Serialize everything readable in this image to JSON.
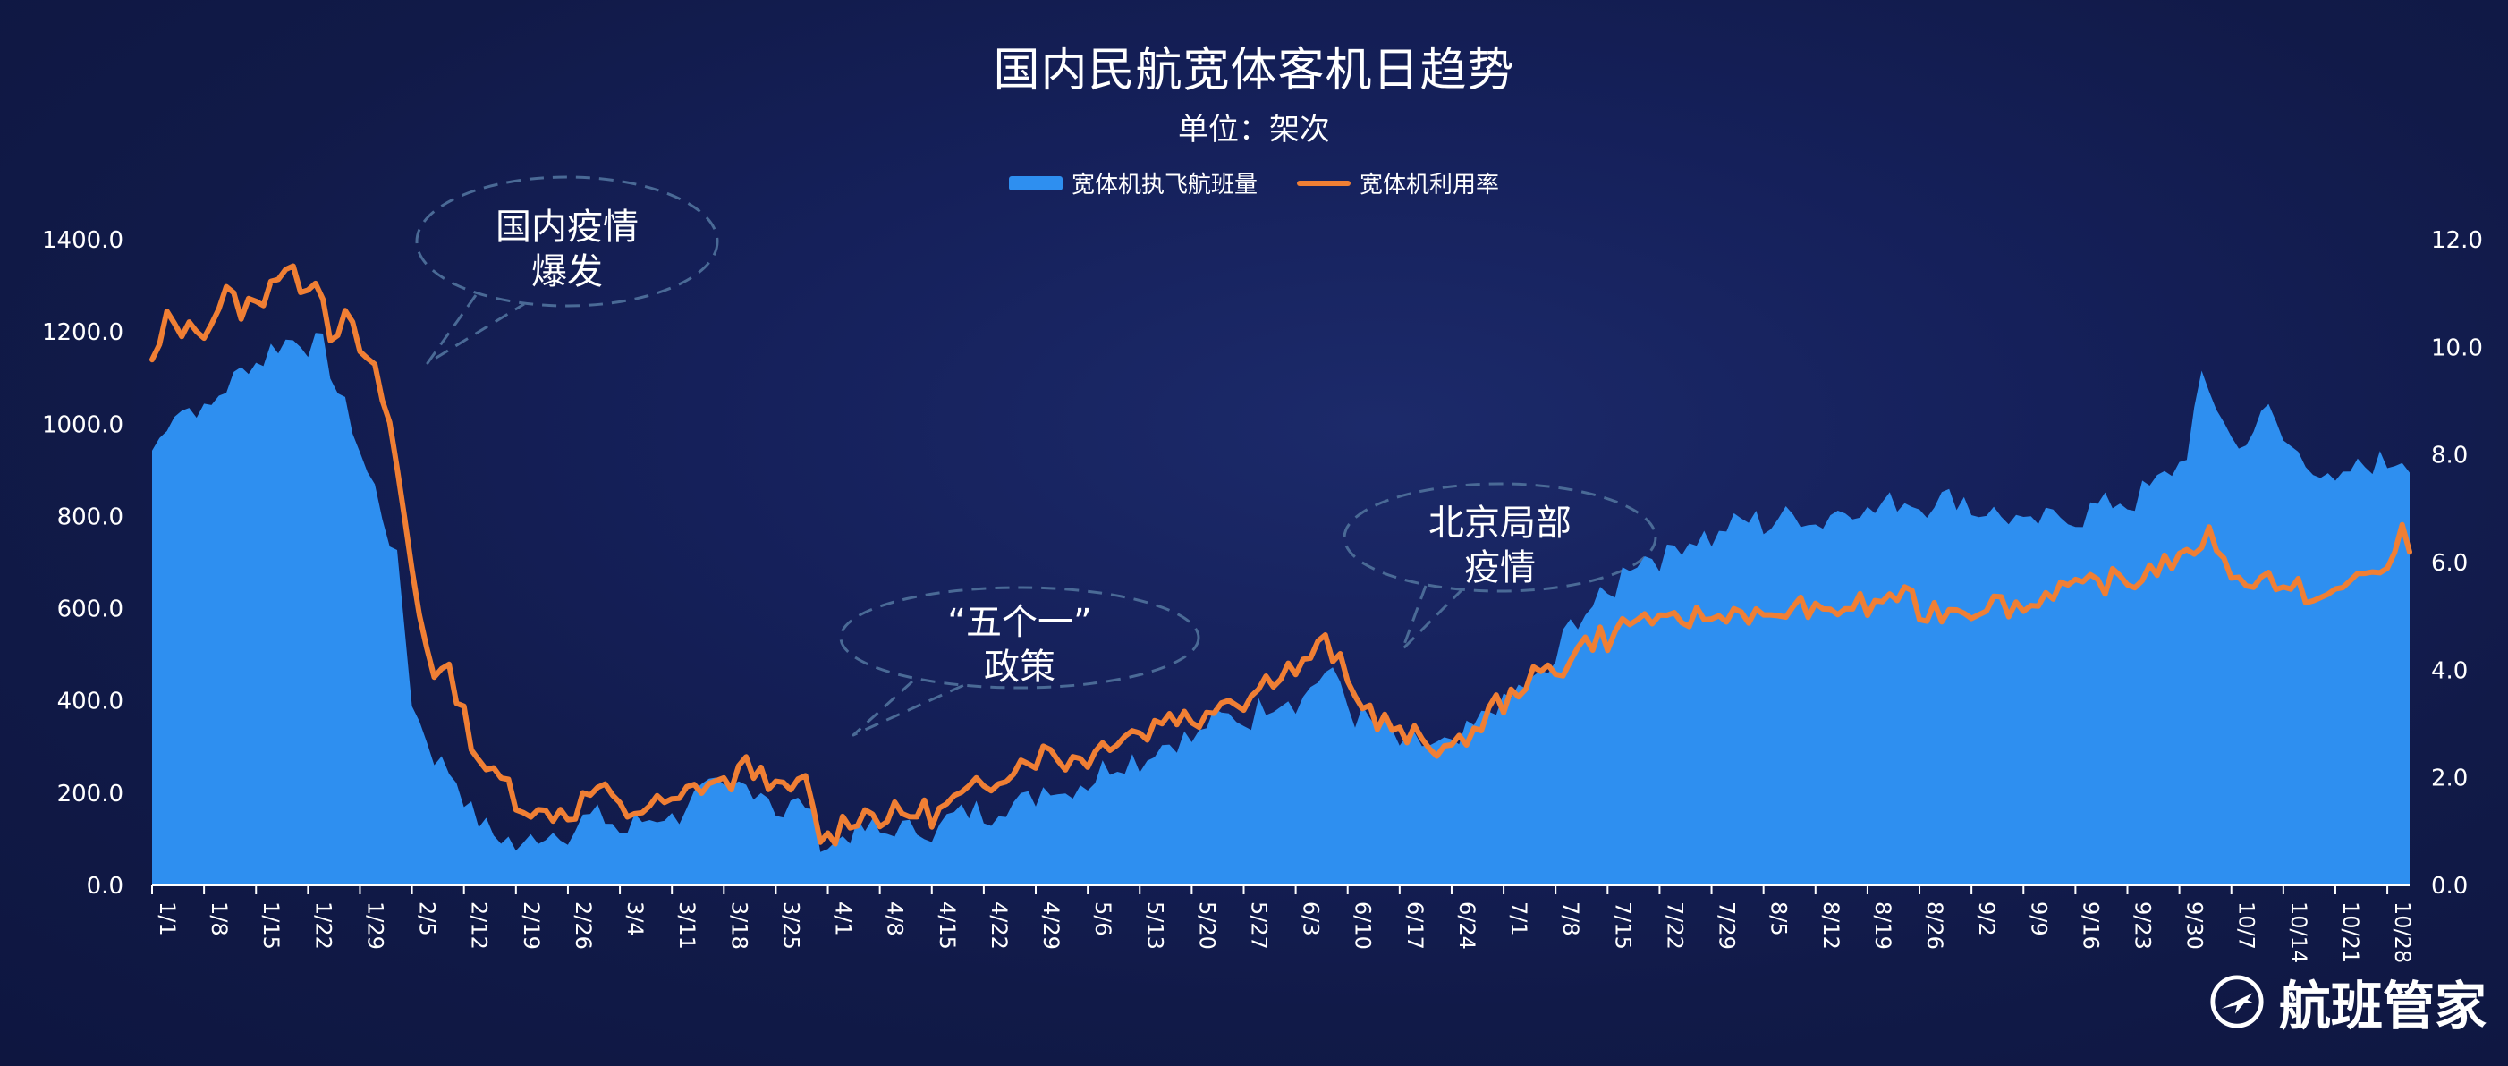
{
  "chart_title": "国内民航宽体客机日趋势",
  "chart_subtitle": "单位：架次",
  "colors": {
    "area": "#2E8FF0",
    "line": "#F07F34",
    "axis_text": "#FFFFFF",
    "bubble": "#4A6A96"
  },
  "legend": [
    {
      "label": "宽体机执飞航班量",
      "kind": "area",
      "color": "#2E8FF0"
    },
    {
      "label": "宽体机利用率",
      "kind": "line",
      "color": "#F07F34"
    }
  ],
  "annotations": [
    {
      "lines": [
        "国内疫情",
        "爆发"
      ]
    },
    {
      "lines": [
        "“五个一”",
        "政策"
      ]
    },
    {
      "lines": [
        "北京局部",
        "疫情"
      ]
    }
  ],
  "logo": {
    "text": "航班管家",
    "icon": "airplane-circle-icon"
  },
  "chart_data": {
    "type": "area",
    "start_date": "1/1",
    "days": 305,
    "x_tick_labels": [
      "1/1",
      "1/8",
      "1/15",
      "1/22",
      "1/29",
      "2/5",
      "2/12",
      "2/19",
      "2/26",
      "3/4",
      "3/11",
      "3/18",
      "3/25",
      "4/1",
      "4/8",
      "4/15",
      "4/22",
      "4/29",
      "5/6",
      "5/13",
      "5/20",
      "5/27",
      "6/3",
      "6/10",
      "6/17",
      "6/24",
      "7/1",
      "7/8",
      "7/15",
      "7/22",
      "7/29",
      "8/5",
      "8/12",
      "8/19",
      "8/26",
      "9/2",
      "9/9",
      "9/16",
      "9/23",
      "9/30",
      "10/7",
      "10/14",
      "10/21",
      "10/28"
    ],
    "y_left": {
      "min": 0,
      "max": 1400,
      "step": 200,
      "tick_labels": [
        "0.0",
        "200.0",
        "400.0",
        "600.0",
        "800.0",
        "1000.0",
        "1200.0",
        "1400.0"
      ]
    },
    "y_right": {
      "min": 0,
      "max": 12,
      "step": 2,
      "tick_labels": [
        "0.0",
        "2.0",
        "4.0",
        "6.0",
        "8.0",
        "10.0",
        "12.0"
      ]
    },
    "series": [
      {
        "name": "宽体机执飞航班量",
        "type": "area",
        "axis": "left",
        "keyframes": [
          [
            0,
            960
          ],
          [
            3,
            1030
          ],
          [
            7,
            1040
          ],
          [
            10,
            1080
          ],
          [
            14,
            1150
          ],
          [
            18,
            1180
          ],
          [
            22,
            1190
          ],
          [
            23,
            1170
          ],
          [
            25,
            1070
          ],
          [
            28,
            960
          ],
          [
            30,
            860
          ],
          [
            33,
            700
          ],
          [
            35,
            420
          ],
          [
            37,
            320
          ],
          [
            38,
            280
          ],
          [
            40,
            250
          ],
          [
            42,
            210
          ],
          [
            44,
            140
          ],
          [
            46,
            110
          ],
          [
            48,
            100
          ],
          [
            50,
            95
          ],
          [
            52,
            110
          ],
          [
            55,
            120
          ],
          [
            57,
            140
          ],
          [
            60,
            150
          ],
          [
            63,
            130
          ],
          [
            66,
            140
          ],
          [
            70,
            160
          ],
          [
            74,
            200
          ],
          [
            78,
            220
          ],
          [
            82,
            210
          ],
          [
            85,
            170
          ],
          [
            88,
            180
          ],
          [
            90,
            100
          ],
          [
            93,
            110
          ],
          [
            96,
            120
          ],
          [
            99,
            130
          ],
          [
            102,
            120
          ],
          [
            105,
            130
          ],
          [
            108,
            150
          ],
          [
            112,
            170
          ],
          [
            115,
            175
          ],
          [
            118,
            185
          ],
          [
            120,
            230
          ],
          [
            123,
            200
          ],
          [
            127,
            250
          ],
          [
            131,
            270
          ],
          [
            135,
            300
          ],
          [
            139,
            320
          ],
          [
            143,
            360
          ],
          [
            147,
            370
          ],
          [
            151,
            400
          ],
          [
            155,
            420
          ],
          [
            158,
            460
          ],
          [
            160,
            440
          ],
          [
            162,
            380
          ],
          [
            165,
            340
          ],
          [
            170,
            310
          ],
          [
            173,
            300
          ],
          [
            175,
            310
          ],
          [
            178,
            340
          ],
          [
            180,
            380
          ],
          [
            183,
            420
          ],
          [
            186,
            440
          ],
          [
            188,
            460
          ],
          [
            190,
            550
          ],
          [
            192,
            580
          ],
          [
            195,
            620
          ],
          [
            199,
            700
          ],
          [
            204,
            730
          ],
          [
            209,
            760
          ],
          [
            214,
            790
          ],
          [
            219,
            800
          ],
          [
            224,
            800
          ],
          [
            229,
            820
          ],
          [
            234,
            830
          ],
          [
            239,
            840
          ],
          [
            244,
            840
          ],
          [
            249,
            800
          ],
          [
            254,
            790
          ],
          [
            259,
            810
          ],
          [
            264,
            830
          ],
          [
            269,
            860
          ],
          [
            272,
            900
          ],
          [
            274,
            960
          ],
          [
            276,
            1090
          ],
          [
            278,
            1040
          ],
          [
            281,
            960
          ],
          [
            283,
            990
          ],
          [
            285,
            1030
          ],
          [
            287,
            980
          ],
          [
            290,
            930
          ],
          [
            293,
            870
          ],
          [
            296,
            900
          ],
          [
            300,
            920
          ],
          [
            302,
            940
          ],
          [
            304,
            920
          ]
        ],
        "note": "values read off left axis (架次), one point per day"
      },
      {
        "name": "宽体机利用率",
        "type": "line",
        "axis": "right",
        "keyframes": [
          [
            0,
            9.8
          ],
          [
            2,
            10.5
          ],
          [
            5,
            10.3
          ],
          [
            8,
            10.6
          ],
          [
            10,
            11.0
          ],
          [
            12,
            10.7
          ],
          [
            14,
            10.9
          ],
          [
            16,
            11.3
          ],
          [
            18,
            11.4
          ],
          [
            20,
            11.2
          ],
          [
            22,
            11.5
          ],
          [
            24,
            10.3
          ],
          [
            26,
            10.5
          ],
          [
            28,
            10.1
          ],
          [
            30,
            9.5
          ],
          [
            32,
            8.6
          ],
          [
            34,
            6.8
          ],
          [
            36,
            5.2
          ],
          [
            37,
            4.5
          ],
          [
            38,
            4.0
          ],
          [
            40,
            3.9
          ],
          [
            42,
            3.3
          ],
          [
            44,
            2.4
          ],
          [
            46,
            2.0
          ],
          [
            48,
            1.9
          ],
          [
            50,
            1.6
          ],
          [
            52,
            1.3
          ],
          [
            55,
            1.4
          ],
          [
            58,
            1.6
          ],
          [
            60,
            1.8
          ],
          [
            62,
            1.6
          ],
          [
            65,
            1.4
          ],
          [
            68,
            1.5
          ],
          [
            70,
            1.6
          ],
          [
            73,
            1.8
          ],
          [
            75,
            1.9
          ],
          [
            77,
            2.0
          ],
          [
            80,
            2.2
          ],
          [
            82,
            2.1
          ],
          [
            84,
            1.9
          ],
          [
            86,
            1.8
          ],
          [
            88,
            1.9
          ],
          [
            90,
            0.9
          ],
          [
            92,
            1.1
          ],
          [
            95,
            1.3
          ],
          [
            98,
            1.4
          ],
          [
            101,
            1.3
          ],
          [
            104,
            1.4
          ],
          [
            107,
            1.5
          ],
          [
            110,
            1.7
          ],
          [
            113,
            2.0
          ],
          [
            116,
            2.2
          ],
          [
            118,
            2.4
          ],
          [
            120,
            2.6
          ],
          [
            123,
            2.3
          ],
          [
            126,
            2.5
          ],
          [
            129,
            2.7
          ],
          [
            132,
            2.9
          ],
          [
            135,
            3.0
          ],
          [
            137,
            3.2
          ],
          [
            140,
            3.1
          ],
          [
            143,
            3.4
          ],
          [
            146,
            3.5
          ],
          [
            149,
            3.7
          ],
          [
            152,
            4.0
          ],
          [
            155,
            4.2
          ],
          [
            157,
            4.4
          ],
          [
            158,
            4.5
          ],
          [
            160,
            4.1
          ],
          [
            162,
            3.6
          ],
          [
            165,
            3.1
          ],
          [
            168,
            2.9
          ],
          [
            171,
            2.7
          ],
          [
            173,
            2.6
          ],
          [
            175,
            2.6
          ],
          [
            177,
            2.8
          ],
          [
            179,
            3.0
          ],
          [
            181,
            3.4
          ],
          [
            183,
            3.6
          ],
          [
            185,
            3.8
          ],
          [
            187,
            3.9
          ],
          [
            190,
            4.2
          ],
          [
            193,
            4.5
          ],
          [
            196,
            4.7
          ],
          [
            199,
            4.9
          ],
          [
            202,
            5.0
          ],
          [
            205,
            4.9
          ],
          [
            208,
            5.0
          ],
          [
            211,
            5.1
          ],
          [
            214,
            5.1
          ],
          [
            217,
            5.0
          ],
          [
            220,
            5.1
          ],
          [
            223,
            5.2
          ],
          [
            226,
            5.1
          ],
          [
            229,
            5.2
          ],
          [
            232,
            5.3
          ],
          [
            235,
            5.4
          ],
          [
            238,
            5.2
          ],
          [
            241,
            5.1
          ],
          [
            244,
            5.2
          ],
          [
            247,
            5.3
          ],
          [
            250,
            5.2
          ],
          [
            253,
            5.3
          ],
          [
            256,
            5.5
          ],
          [
            259,
            5.6
          ],
          [
            262,
            5.6
          ],
          [
            265,
            5.7
          ],
          [
            268,
            5.8
          ],
          [
            271,
            6.0
          ],
          [
            273,
            6.1
          ],
          [
            275,
            6.3
          ],
          [
            277,
            6.5
          ],
          [
            280,
            6.0
          ],
          [
            282,
            5.5
          ],
          [
            284,
            5.9
          ],
          [
            286,
            5.6
          ],
          [
            289,
            5.5
          ],
          [
            292,
            5.3
          ],
          [
            295,
            5.6
          ],
          [
            298,
            5.8
          ],
          [
            301,
            6.0
          ],
          [
            303,
            6.5
          ],
          [
            304,
            6.3
          ]
        ],
        "note": "values read off right axis"
      }
    ]
  }
}
